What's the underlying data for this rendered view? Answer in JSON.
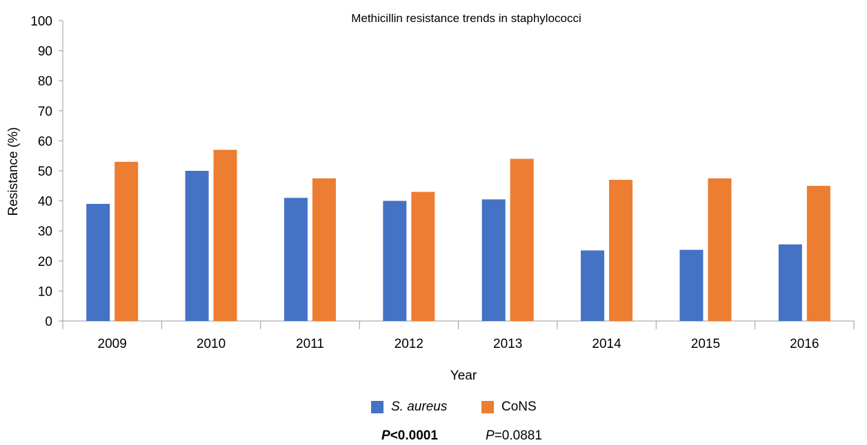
{
  "chart_data": {
    "type": "bar",
    "title": "Methicillin resistance trends in staphylococci",
    "xlabel": "Year",
    "ylabel": "Resistance (%)",
    "ylim": [
      0,
      100
    ],
    "yticks": [
      0,
      10,
      20,
      30,
      40,
      50,
      60,
      70,
      80,
      90,
      100
    ],
    "categories": [
      "2009",
      "2010",
      "2011",
      "2012",
      "2013",
      "2014",
      "2015",
      "2016"
    ],
    "grid": false,
    "legend_position": "bottom",
    "series": [
      {
        "name": "S. aureus",
        "color": "#4472C4",
        "values": [
          39,
          50,
          41,
          40,
          40.5,
          23.5,
          23.7,
          25.5
        ]
      },
      {
        "name": "CoNS",
        "color": "#ED7D31",
        "values": [
          53,
          57,
          47.5,
          43,
          54,
          47,
          47.5,
          45
        ]
      }
    ]
  },
  "stats": {
    "p1": {
      "symbol": "P",
      "value": "<0.0001"
    },
    "p2": {
      "symbol": "P",
      "value": "=0.0881"
    }
  }
}
